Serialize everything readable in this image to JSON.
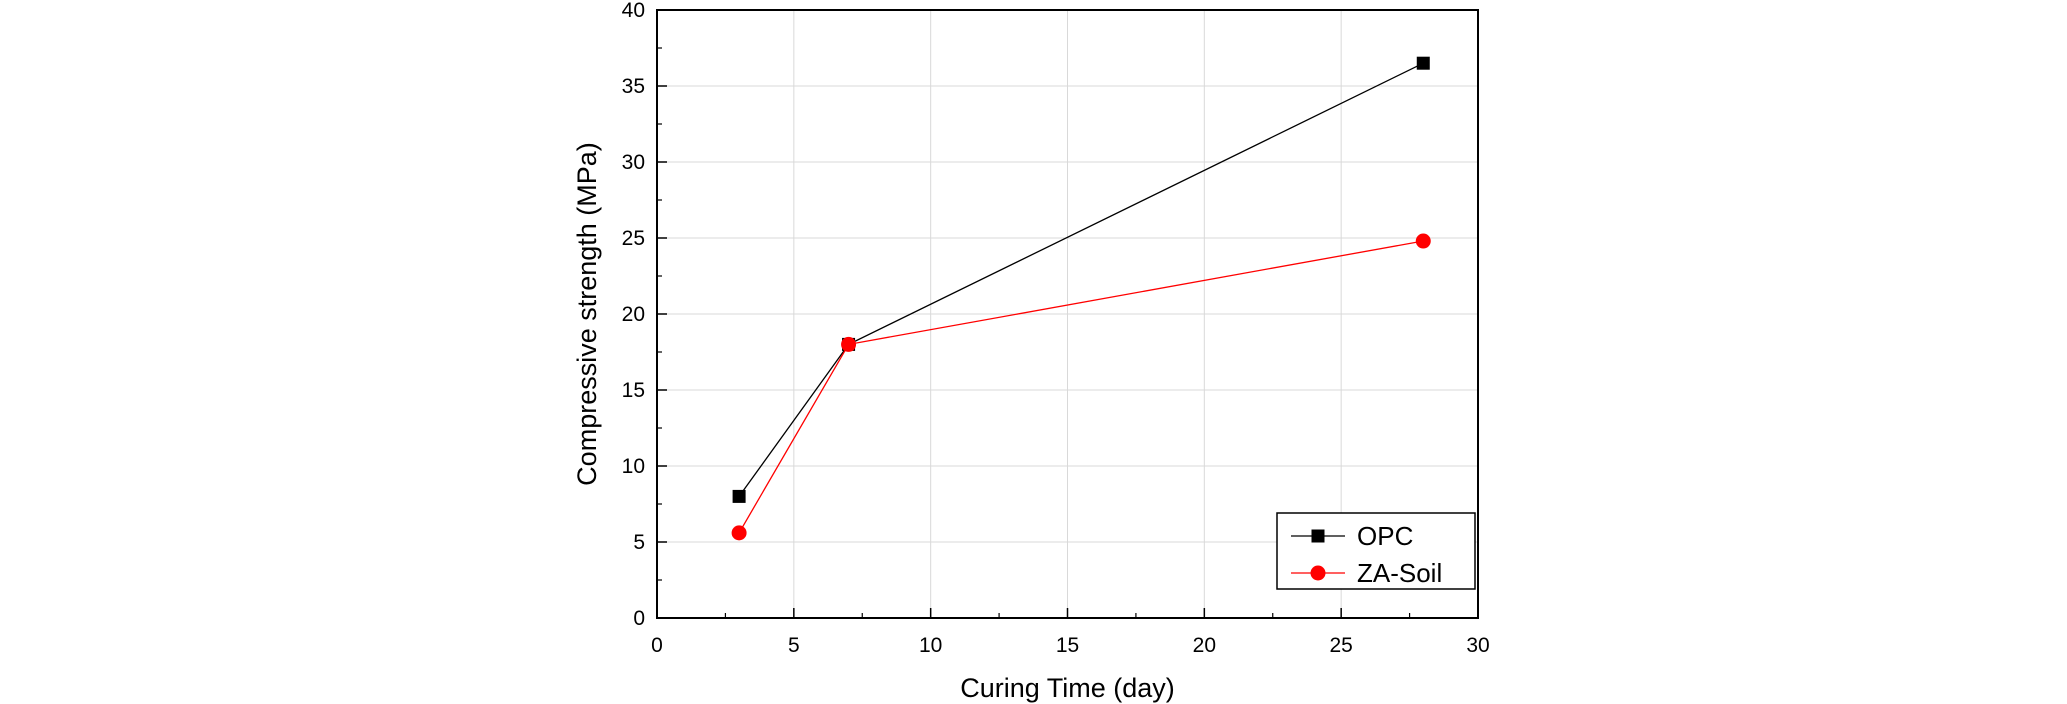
{
  "chart_data": {
    "type": "line",
    "title": "",
    "xlabel": "Curing Time (day)",
    "ylabel": "Compressive strength (MPa)",
    "xlim": [
      0,
      30
    ],
    "ylim": [
      0,
      40
    ],
    "xticks": [
      0,
      5,
      10,
      15,
      20,
      25,
      30
    ],
    "yticks": [
      0,
      5,
      10,
      15,
      20,
      25,
      30,
      35,
      40
    ],
    "grid": true,
    "legend_position": "bottom-right",
    "series": [
      {
        "name": "OPC",
        "color": "#000000",
        "marker": "square",
        "x": [
          3,
          7,
          28
        ],
        "y": [
          8.0,
          18.0,
          36.5
        ]
      },
      {
        "name": "ZA-Soil",
        "color": "#ff0000",
        "marker": "circle",
        "x": [
          3,
          7,
          28
        ],
        "y": [
          5.6,
          18.0,
          24.8
        ]
      }
    ]
  }
}
